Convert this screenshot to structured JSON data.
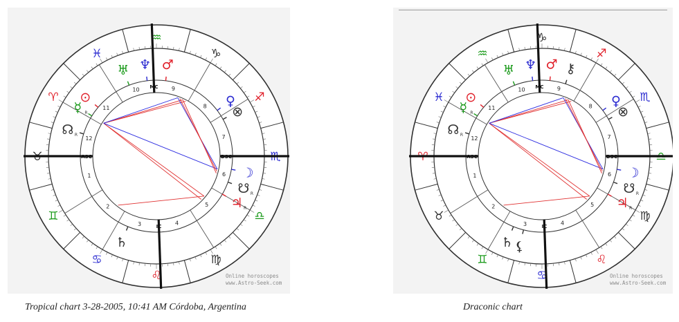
{
  "captions": {
    "left": "Tropical chart 3-28-2005, 10:41 AM Córdoba, Argentina",
    "right": "Draconic chart"
  },
  "watermark": {
    "line1": "Online horoscopes",
    "line2": "www.Astro-Seek.com"
  },
  "colors": {
    "fire": "#e0202a",
    "earth": "#303030",
    "air": "#1a9a1a",
    "water": "#2a2ad0",
    "aspect_hard": "#e03030",
    "aspect_soft": "#2a2ae0",
    "ring": "#303030"
  },
  "angle_labels": {
    "asc": "ASC",
    "dsc": "DSC",
    "mc": "MC",
    "ic": "IC"
  },
  "charts": [
    {
      "id": "tropical",
      "signs": [
        {
          "glyph": "♈",
          "name": "aries",
          "element": "fire"
        },
        {
          "glyph": "♉",
          "name": "taurus",
          "element": "earth"
        },
        {
          "glyph": "♊",
          "name": "gemini",
          "element": "air"
        },
        {
          "glyph": "♋",
          "name": "cancer",
          "element": "water"
        },
        {
          "glyph": "♌",
          "name": "leo",
          "element": "fire"
        },
        {
          "glyph": "♍",
          "name": "virgo",
          "element": "earth"
        },
        {
          "glyph": "♎",
          "name": "libra",
          "element": "air"
        },
        {
          "glyph": "♏",
          "name": "scorpio",
          "element": "water"
        },
        {
          "glyph": "♐",
          "name": "sagittarius",
          "element": "fire"
        },
        {
          "glyph": "♑",
          "name": "capricorn",
          "element": "earth"
        },
        {
          "glyph": "♒",
          "name": "aquarius",
          "element": "air"
        },
        {
          "glyph": "♓",
          "name": "pisces",
          "element": "water"
        }
      ],
      "first_sign_index": 1,
      "houses": [
        "1",
        "2",
        "3",
        "4",
        "5",
        "6",
        "7",
        "8",
        "9",
        "10",
        "11",
        "12"
      ],
      "planets": [
        {
          "glyph": "♆",
          "name": "neptune",
          "element": "water",
          "deg": 97
        },
        {
          "glyph": "♂",
          "name": "mars",
          "element": "fire",
          "deg": 83
        },
        {
          "glyph": "♅",
          "name": "uranus",
          "element": "air",
          "deg": 111
        },
        {
          "glyph": "☿",
          "name": "mercury",
          "element": "air",
          "deg": 148,
          "retro": "R"
        },
        {
          "glyph": "⊙",
          "name": "sun",
          "element": "fire",
          "deg": 140
        },
        {
          "glyph": "☊",
          "name": "north-node",
          "element": "earth",
          "deg": 163,
          "retro": "R"
        },
        {
          "glyph": "♀",
          "name": "venus",
          "element": "water",
          "deg": 37
        },
        {
          "glyph": "⊗",
          "name": "fortune",
          "element": "earth",
          "deg": 29
        },
        {
          "glyph": "☽",
          "name": "moon",
          "element": "water",
          "deg": -10
        },
        {
          "glyph": "☋",
          "name": "south-node",
          "element": "earth",
          "deg": -20,
          "retro": "R"
        },
        {
          "glyph": "♃",
          "name": "jupiter",
          "element": "fire",
          "deg": -30,
          "retro": "R"
        },
        {
          "glyph": "♄",
          "name": "saturn",
          "element": "earth",
          "deg": -112
        }
      ]
    },
    {
      "id": "draconic",
      "signs": [
        {
          "glyph": "♈",
          "name": "aries",
          "element": "fire"
        },
        {
          "glyph": "♉",
          "name": "taurus",
          "element": "earth"
        },
        {
          "glyph": "♊",
          "name": "gemini",
          "element": "air"
        },
        {
          "glyph": "♋",
          "name": "cancer",
          "element": "water"
        },
        {
          "glyph": "♌",
          "name": "leo",
          "element": "fire"
        },
        {
          "glyph": "♍",
          "name": "virgo",
          "element": "earth"
        },
        {
          "glyph": "♎",
          "name": "libra",
          "element": "air"
        },
        {
          "glyph": "♏",
          "name": "scorpio",
          "element": "water"
        },
        {
          "glyph": "♐",
          "name": "sagittarius",
          "element": "fire"
        },
        {
          "glyph": "♑",
          "name": "capricorn",
          "element": "earth"
        },
        {
          "glyph": "♒",
          "name": "aquarius",
          "element": "air"
        },
        {
          "glyph": "♓",
          "name": "pisces",
          "element": "water"
        }
      ],
      "first_sign_index": 0,
      "houses": [
        "1",
        "2",
        "3",
        "4",
        "5",
        "6",
        "7",
        "8",
        "9",
        "10",
        "11",
        "12"
      ],
      "planets": [
        {
          "glyph": "♆",
          "name": "neptune",
          "element": "water",
          "deg": 97
        },
        {
          "glyph": "♂",
          "name": "mars",
          "element": "fire",
          "deg": 84
        },
        {
          "glyph": "⚷",
          "name": "chiron",
          "element": "earth",
          "deg": 72
        },
        {
          "glyph": "♅",
          "name": "uranus",
          "element": "air",
          "deg": 111
        },
        {
          "glyph": "☿",
          "name": "mercury",
          "element": "air",
          "deg": 148,
          "retro": "R"
        },
        {
          "glyph": "⊙",
          "name": "sun",
          "element": "fire",
          "deg": 140
        },
        {
          "glyph": "☊",
          "name": "north-node",
          "element": "earth",
          "deg": 163,
          "retro": "R"
        },
        {
          "glyph": "♀",
          "name": "venus",
          "element": "water",
          "deg": 37
        },
        {
          "glyph": "⊗",
          "name": "fortune",
          "element": "earth",
          "deg": 29
        },
        {
          "glyph": "☽",
          "name": "moon",
          "element": "water",
          "deg": -10
        },
        {
          "glyph": "☋",
          "name": "south-node",
          "element": "earth",
          "deg": -20,
          "retro": "R"
        },
        {
          "glyph": "♃",
          "name": "jupiter",
          "element": "fire",
          "deg": -30,
          "retro": "R"
        },
        {
          "glyph": "♄",
          "name": "saturn",
          "element": "earth",
          "deg": -112
        },
        {
          "glyph": "⚸",
          "name": "lilith",
          "element": "earth",
          "deg": -104
        }
      ]
    }
  ]
}
